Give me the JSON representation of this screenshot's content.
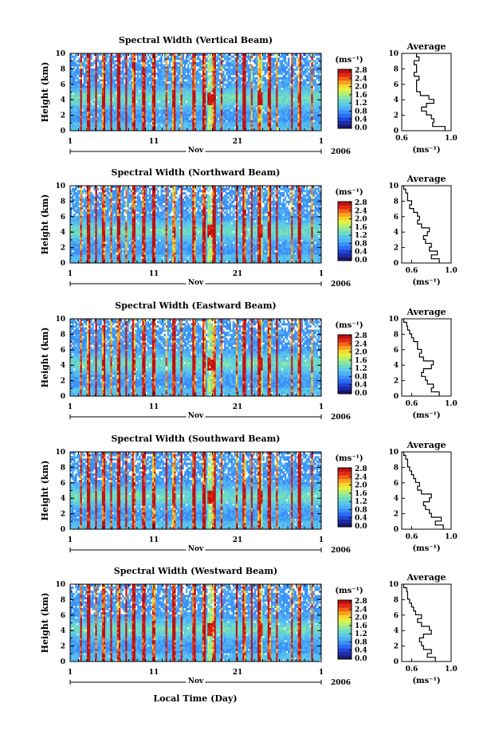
{
  "page": {
    "xlabel": "Local Time (Day)"
  },
  "colormap": [
    "#1a1a6e",
    "#1f2aa8",
    "#1f46d6",
    "#2b6cf2",
    "#3a90f7",
    "#4fb0f5",
    "#5ac8e8",
    "#6bd9c8",
    "#8ee6a0",
    "#b8ef70",
    "#e2f244",
    "#f8d52c",
    "#f8a021",
    "#f06419",
    "#e02b14",
    "#c00f0f"
  ],
  "chart_data": [
    {
      "type": "heatmap",
      "title": "Spectral Width (Vertical Beam)",
      "ylabel": "Height (km)",
      "ylim": [
        0,
        10
      ],
      "yticks": [
        "0",
        "2",
        "4",
        "6",
        "8",
        "10"
      ],
      "xticks": [
        "1",
        "11",
        "21",
        "1"
      ],
      "month_label": "Nov",
      "year_label": "2006",
      "colorbar": {
        "unit": "(ms⁻¹)",
        "ticks": [
          "0.0",
          "0.4",
          "0.8",
          "1.2",
          "1.6",
          "2.0",
          "2.4",
          "2.8"
        ],
        "range": [
          0,
          2.8
        ]
      },
      "average_profile": {
        "title": "Average",
        "xlabel": "(ms⁻¹)",
        "xticks": [
          "0.6",
          "1.0"
        ],
        "xlim": [
          0.6,
          1.0
        ],
        "heights": [
          0.3,
          0.8,
          1.3,
          1.8,
          2.3,
          2.8,
          3.3,
          3.8,
          4.3,
          4.8,
          5.3,
          5.8,
          6.3,
          6.8,
          7.3,
          7.8,
          8.3,
          8.8,
          9.3,
          9.8
        ],
        "values": [
          0.95,
          0.85,
          0.86,
          0.84,
          0.8,
          0.76,
          0.8,
          0.86,
          0.82,
          0.75,
          0.72,
          0.72,
          0.72,
          0.74,
          0.7,
          0.72,
          0.72,
          0.7,
          0.74,
          0.72
        ]
      }
    },
    {
      "type": "heatmap",
      "title": "Spectral Width (Northward Beam)",
      "ylabel": "Height (km)",
      "ylim": [
        0,
        10
      ],
      "yticks": [
        "0",
        "2",
        "4",
        "6",
        "8",
        "10"
      ],
      "xticks": [
        "1",
        "11",
        "21",
        "1"
      ],
      "month_label": "Nov",
      "year_label": "2006",
      "colorbar": {
        "unit": "(ms⁻¹)",
        "ticks": [
          "0.0",
          "0.4",
          "0.8",
          "1.2",
          "1.6",
          "2.0",
          "2.4",
          "2.8"
        ],
        "range": [
          0,
          2.8
        ]
      },
      "average_profile": {
        "title": "Average",
        "xlabel": "(ms⁻¹)",
        "xticks": [
          "0.6",
          "1.0"
        ],
        "xlim": [
          0.5,
          1.0
        ],
        "heights": [
          0.3,
          0.8,
          1.3,
          1.8,
          2.3,
          2.8,
          3.3,
          3.8,
          4.3,
          4.8,
          5.3,
          5.8,
          6.3,
          6.8,
          7.3,
          7.8,
          8.3,
          8.8,
          9.3,
          9.8
        ],
        "values": [
          0.88,
          0.8,
          0.86,
          0.78,
          0.8,
          0.74,
          0.72,
          0.76,
          0.78,
          0.7,
          0.66,
          0.68,
          0.66,
          0.62,
          0.58,
          0.6,
          0.56,
          0.56,
          0.54,
          0.52
        ]
      }
    },
    {
      "type": "heatmap",
      "title": "Spectral Width (Eastward Beam)",
      "ylabel": "Height (km)",
      "ylim": [
        0,
        10
      ],
      "yticks": [
        "0",
        "2",
        "4",
        "6",
        "8",
        "10"
      ],
      "xticks": [
        "1",
        "11",
        "21",
        "1"
      ],
      "month_label": "Nov",
      "year_label": "2006",
      "colorbar": {
        "unit": "(ms⁻¹)",
        "ticks": [
          "0.0",
          "0.4",
          "0.8",
          "1.2",
          "1.6",
          "2.0",
          "2.4",
          "2.8"
        ],
        "range": [
          0,
          2.8
        ]
      },
      "average_profile": {
        "title": "Average",
        "xlabel": "(ms⁻¹)",
        "xticks": [
          "0.6",
          "1.0"
        ],
        "xlim": [
          0.5,
          1.0
        ],
        "heights": [
          0.3,
          0.8,
          1.3,
          1.8,
          2.3,
          2.8,
          3.3,
          3.8,
          4.3,
          4.8,
          5.3,
          5.8,
          6.3,
          6.8,
          7.3,
          7.8,
          8.3,
          8.8,
          9.3,
          9.8
        ],
        "values": [
          0.88,
          0.8,
          0.82,
          0.76,
          0.74,
          0.7,
          0.72,
          0.8,
          0.82,
          0.72,
          0.68,
          0.7,
          0.66,
          0.66,
          0.62,
          0.6,
          0.58,
          0.56,
          0.55,
          0.52
        ]
      }
    },
    {
      "type": "heatmap",
      "title": "Spectral Width (Southward Beam)",
      "ylabel": "Height (km)",
      "ylim": [
        0,
        10
      ],
      "yticks": [
        "0",
        "2",
        "4",
        "6",
        "8",
        "10"
      ],
      "xticks": [
        "1",
        "11",
        "21",
        "1"
      ],
      "month_label": "Nov",
      "year_label": "2006",
      "colorbar": {
        "unit": "(ms⁻¹)",
        "ticks": [
          "0.0",
          "0.4",
          "0.8",
          "1.2",
          "1.6",
          "2.0",
          "2.4",
          "2.8"
        ],
        "range": [
          0,
          2.8
        ]
      },
      "average_profile": {
        "title": "Average",
        "xlabel": "(ms⁻¹)",
        "xticks": [
          "0.6",
          "1.0"
        ],
        "xlim": [
          0.5,
          1.0
        ],
        "heights": [
          0.3,
          0.8,
          1.3,
          1.8,
          2.3,
          2.8,
          3.3,
          3.8,
          4.3,
          4.8,
          5.3,
          5.8,
          6.3,
          6.8,
          7.3,
          7.8,
          8.3,
          8.8,
          9.3,
          9.8
        ],
        "values": [
          0.92,
          0.84,
          0.9,
          0.8,
          0.78,
          0.74,
          0.72,
          0.78,
          0.8,
          0.7,
          0.66,
          0.68,
          0.64,
          0.62,
          0.6,
          0.58,
          0.56,
          0.56,
          0.54,
          0.52
        ]
      }
    },
    {
      "type": "heatmap",
      "title": "Spectral Width (Westward Beam)",
      "ylabel": "Height (km)",
      "ylim": [
        0,
        10
      ],
      "yticks": [
        "0",
        "2",
        "4",
        "6",
        "8",
        "10"
      ],
      "xticks": [
        "1",
        "11",
        "21",
        "1"
      ],
      "month_label": "Nov",
      "year_label": "2006",
      "colorbar": {
        "unit": "(ms⁻¹)",
        "ticks": [
          "0.0",
          "0.4",
          "0.8",
          "1.2",
          "1.6",
          "2.0",
          "2.4",
          "2.8"
        ],
        "range": [
          0,
          2.8
        ]
      },
      "average_profile": {
        "title": "Average",
        "xlabel": "(ms⁻¹)",
        "xticks": [
          "0.6",
          "1.0"
        ],
        "xlim": [
          0.5,
          1.0
        ],
        "heights": [
          0.3,
          0.8,
          1.3,
          1.8,
          2.3,
          2.8,
          3.3,
          3.8,
          4.3,
          4.8,
          5.3,
          5.8,
          6.3,
          6.8,
          7.3,
          7.8,
          8.3,
          8.8,
          9.3,
          9.8
        ],
        "values": [
          0.84,
          0.76,
          0.8,
          0.72,
          0.7,
          0.68,
          0.72,
          0.8,
          0.78,
          0.7,
          0.66,
          0.7,
          0.64,
          0.62,
          0.6,
          0.58,
          0.56,
          0.56,
          0.55,
          0.52
        ]
      }
    }
  ]
}
